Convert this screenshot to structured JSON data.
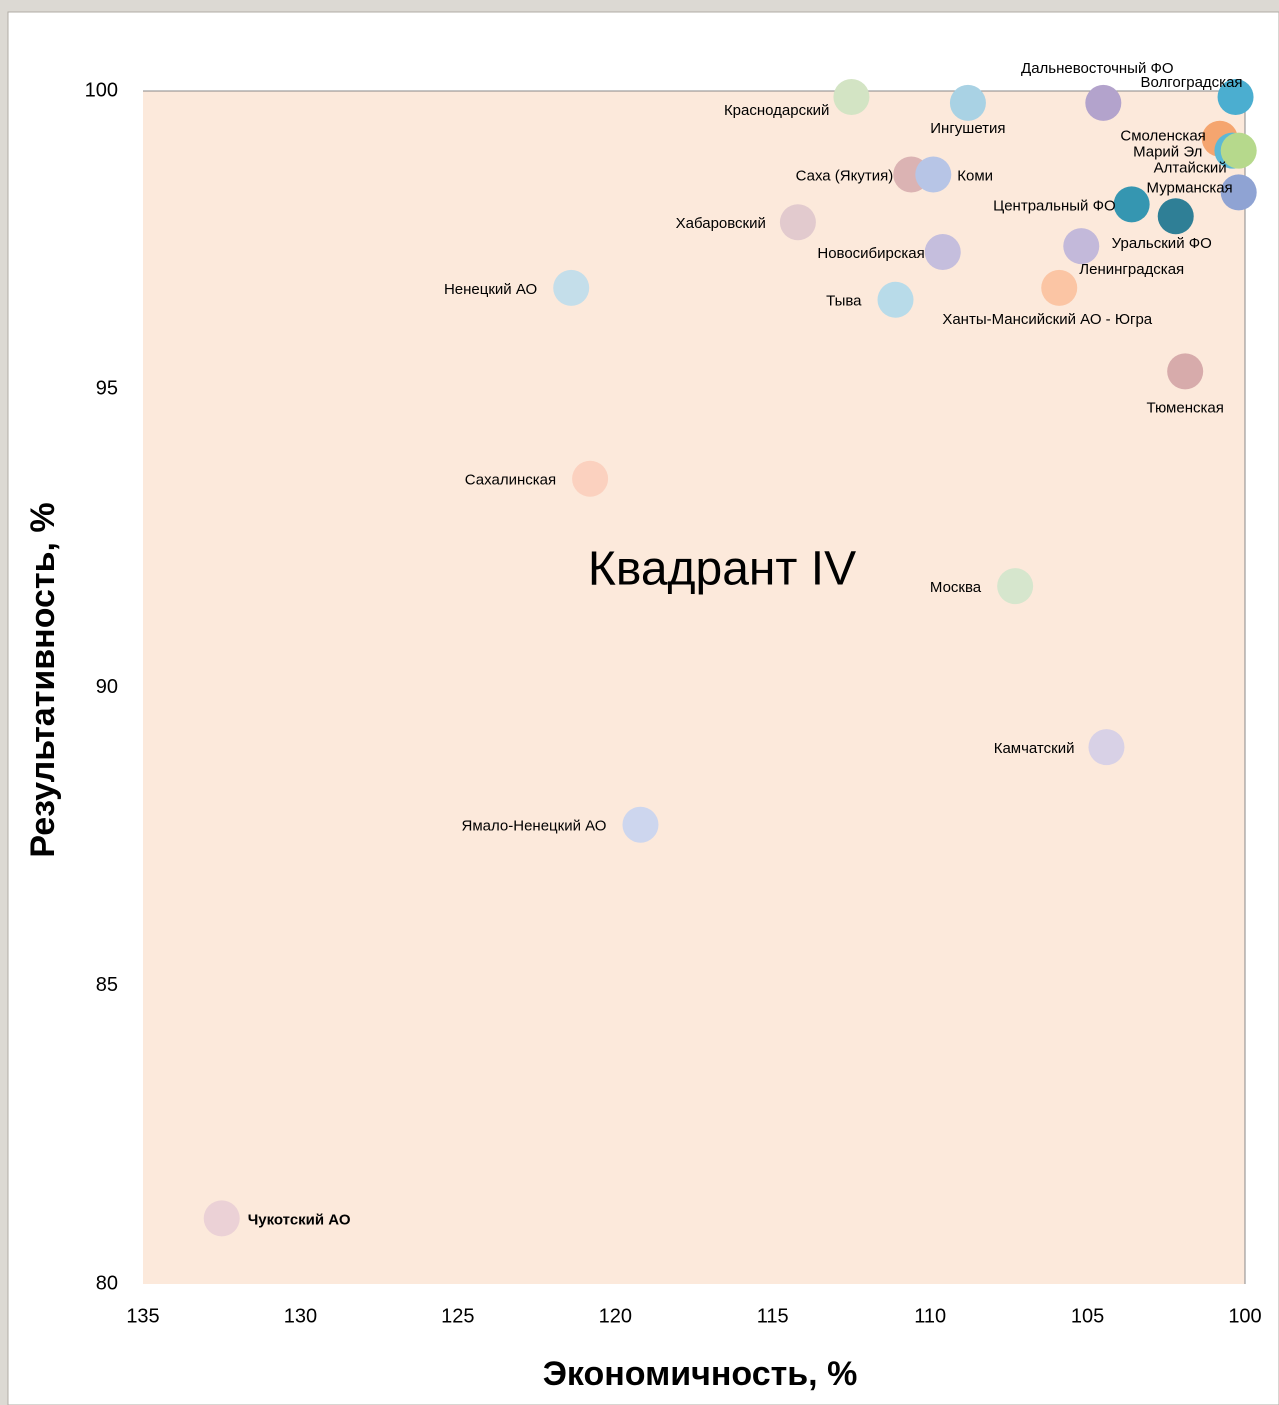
{
  "chart_data": {
    "type": "scatter",
    "annotation": "Квадрант IV",
    "x_label": "Экономичность, %",
    "y_label": "Результативность, %",
    "xlim": [
      135,
      100
    ],
    "xticks": [
      135,
      130,
      125,
      120,
      115,
      110,
      105,
      100
    ],
    "ylim": [
      80,
      100
    ],
    "yticks": [
      80,
      85,
      90,
      95,
      100
    ],
    "grid": false,
    "labels": [
      "Краснодарский",
      "Ингушетия",
      "Дальневосточный ФО",
      "Волгоградская",
      "Смоленская",
      "Марий Эл",
      "Алтайский",
      "Мурманская",
      "Уральский ФО",
      "Центральный ФО",
      "Саха (Якутия)",
      "Коми",
      "Хабаровский",
      "Новосибирская",
      "Ленинградская",
      "Ненецкий  АО",
      "Тыва",
      "Ханты-Мансийский АО - Югра",
      "Тюменская",
      "Сахалинская",
      "Москва",
      "Камчатский",
      "Ямало-Ненецкий АО",
      "Чукотский АО"
    ],
    "x": [
      112.5,
      108.8,
      104.5,
      100.3,
      100.8,
      100.4,
      100.2,
      100.2,
      102.2,
      103.6,
      110.6,
      109.9,
      114.2,
      109.6,
      105.2,
      121.4,
      111.1,
      105.9,
      101.9,
      120.8,
      107.3,
      104.4,
      119.2,
      132.5
    ],
    "values": [
      99.9,
      99.8,
      99.8,
      99.9,
      99.2,
      99.0,
      99.0,
      98.3,
      97.9,
      98.1,
      98.6,
      98.6,
      97.8,
      97.3,
      97.4,
      96.7,
      96.5,
      96.7,
      95.3,
      93.5,
      91.7,
      89.0,
      87.7,
      81.1
    ],
    "colors": [
      "#d3e4c4",
      "#a9d2e4",
      "#b3a3cc",
      "#4baed0",
      "#f5a56f",
      "#5cb8d6",
      "#b6d98c",
      "#8fa3d3",
      "#2f7f96",
      "#3596b1",
      "#dbb3b3",
      "#b7c5e6",
      "#e2cace",
      "#c5bedd",
      "#c3b9da",
      "#c4deea",
      "#b8dbe9",
      "#fbc5a4",
      "#d7abab",
      "#fbd1bf",
      "#d6e6cd",
      "#d8d1e6",
      "#cdd6ee",
      "#ebd1d6"
    ]
  }
}
